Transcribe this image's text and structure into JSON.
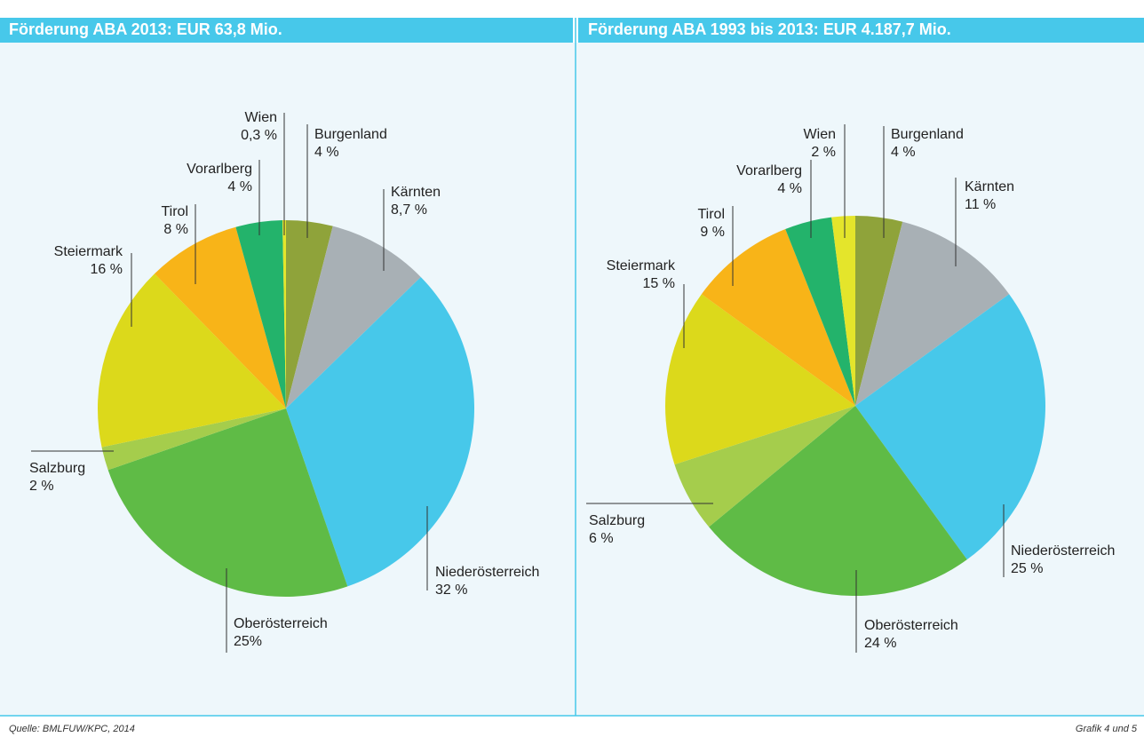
{
  "chart_data": [
    {
      "type": "pie",
      "title": "Förderung ABA 2013: EUR 63,8 Mio.",
      "categories": [
        "Burgenland",
        "Kärnten",
        "Niederösterreich",
        "Oberösterreich",
        "Salzburg",
        "Steiermark",
        "Tirol",
        "Vorarlberg",
        "Wien"
      ],
      "values": [
        4,
        8.7,
        32,
        25,
        2,
        16,
        8,
        4,
        0.3
      ],
      "value_labels": [
        "4 %",
        "8,7 %",
        "32 %",
        "25%",
        "2 %",
        "16 %",
        "8 %",
        "4 %",
        "0,3 %"
      ],
      "colors": [
        "#8fa33a",
        "#a8b0b5",
        "#47c8ea",
        "#5fbb46",
        "#a5cd4c",
        "#dcd91b",
        "#f8b418",
        "#23b36b",
        "#e4e52b"
      ]
    },
    {
      "type": "pie",
      "title": "Förderung ABA 1993 bis 2013: EUR 4.187,7 Mio.",
      "categories": [
        "Burgenland",
        "Kärnten",
        "Niederösterreich",
        "Oberösterreich",
        "Salzburg",
        "Steiermark",
        "Tirol",
        "Vorarlberg",
        "Wien"
      ],
      "values": [
        4,
        11,
        25,
        24,
        6,
        15,
        9,
        4,
        2
      ],
      "value_labels": [
        "4 %",
        "11 %",
        "25 %",
        "24 %",
        "6 %",
        "15 %",
        "9 %",
        "4 %",
        "2 %"
      ],
      "colors": [
        "#8fa33a",
        "#a8b0b5",
        "#47c8ea",
        "#5fbb46",
        "#a5cd4c",
        "#dcd91b",
        "#f8b418",
        "#23b36b",
        "#e4e52b"
      ]
    }
  ],
  "footer": {
    "source": "Quelle: BMLFUW/KPC, 2014",
    "note": "Grafik 4 und 5"
  }
}
